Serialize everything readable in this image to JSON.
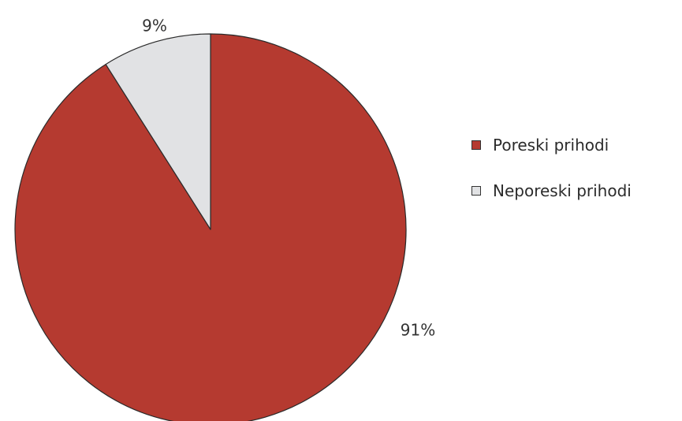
{
  "chart_data": {
    "type": "pie",
    "title": "",
    "categories": [
      "Poreski prihodi",
      "Neporeski prihodi"
    ],
    "values": [
      91,
      9
    ],
    "labels": [
      "91%",
      "9%"
    ],
    "colors": [
      "#b53a30",
      "#e1e2e4"
    ],
    "start_angle_deg": 0,
    "direction": "clockwise",
    "legend_position": "right"
  },
  "legend": {
    "items": [
      {
        "label": "Poreski prihodi",
        "color": "#b53a30"
      },
      {
        "label": "Neporeski prihodi",
        "color": "#e1e2e4"
      }
    ]
  }
}
